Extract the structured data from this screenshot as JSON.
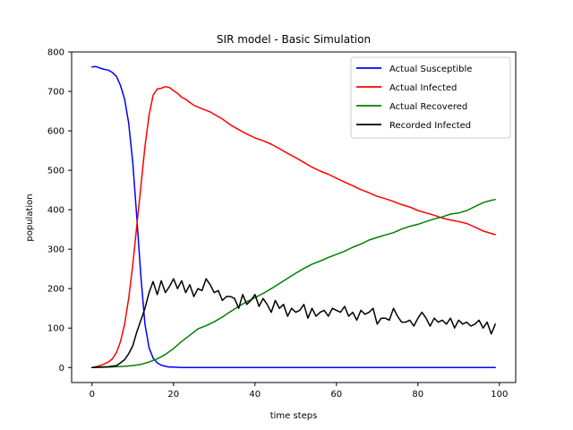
{
  "chart_data": {
    "type": "line",
    "title": "SIR model - Basic Simulation",
    "xlabel": "time steps",
    "ylabel": "population",
    "xlim": [
      -5,
      104
    ],
    "ylim": [
      -38,
      800
    ],
    "xticks": [
      0,
      20,
      40,
      60,
      80,
      100
    ],
    "yticks": [
      0,
      100,
      200,
      300,
      400,
      500,
      600,
      700,
      800
    ],
    "grid": false,
    "legend_position": "top-right",
    "series": [
      {
        "name": "Actual Susceptible",
        "color": "#0000ff",
        "x": [
          0,
          1,
          2,
          3,
          4,
          5,
          6,
          7,
          8,
          9,
          10,
          11,
          12,
          13,
          14,
          15,
          16,
          17,
          18,
          19,
          20,
          22,
          25,
          30,
          40,
          50,
          60,
          70,
          80,
          90,
          99
        ],
        "values": [
          762,
          763,
          759,
          756,
          754,
          748,
          738,
          715,
          680,
          620,
          520,
          380,
          230,
          110,
          50,
          24,
          12,
          6,
          3,
          1,
          1,
          0,
          0,
          0,
          0,
          0,
          0,
          0,
          0,
          0,
          0
        ]
      },
      {
        "name": "Actual Infected",
        "color": "#ff0000",
        "x": [
          0,
          1,
          2,
          3,
          4,
          5,
          6,
          7,
          8,
          9,
          10,
          11,
          12,
          13,
          14,
          15,
          16,
          17,
          18,
          19,
          20,
          21,
          22,
          23,
          24,
          25,
          26,
          27,
          28,
          29,
          30,
          32,
          34,
          36,
          38,
          40,
          42,
          44,
          46,
          48,
          50,
          52,
          54,
          56,
          58,
          60,
          62,
          64,
          66,
          68,
          70,
          72,
          74,
          76,
          78,
          80,
          82,
          84,
          86,
          88,
          90,
          92,
          94,
          96,
          98,
          99
        ],
        "values": [
          0,
          2,
          5,
          9,
          14,
          22,
          38,
          66,
          110,
          175,
          260,
          360,
          460,
          560,
          640,
          690,
          706,
          708,
          712,
          710,
          702,
          695,
          685,
          680,
          672,
          665,
          660,
          656,
          652,
          648,
          642,
          630,
          615,
          603,
          592,
          582,
          575,
          566,
          555,
          543,
          532,
          520,
          508,
          498,
          490,
          480,
          470,
          461,
          451,
          443,
          434,
          428,
          421,
          413,
          407,
          398,
          392,
          386,
          379,
          374,
          370,
          365,
          356,
          346,
          340,
          337
        ]
      },
      {
        "name": "Actual Recovered",
        "color": "#008000",
        "x": [
          0,
          4,
          8,
          10,
          12,
          14,
          16,
          18,
          20,
          22,
          24,
          26,
          28,
          30,
          32,
          34,
          36,
          38,
          40,
          42,
          44,
          46,
          48,
          50,
          52,
          54,
          56,
          58,
          60,
          62,
          64,
          66,
          68,
          70,
          72,
          74,
          76,
          78,
          80,
          82,
          84,
          86,
          88,
          90,
          92,
          94,
          96,
          98,
          99
        ],
        "values": [
          0,
          1,
          3,
          5,
          8,
          14,
          22,
          33,
          48,
          66,
          82,
          98,
          106,
          116,
          128,
          142,
          155,
          167,
          177,
          188,
          200,
          213,
          226,
          239,
          251,
          262,
          270,
          279,
          287,
          295,
          305,
          313,
          323,
          330,
          336,
          342,
          351,
          358,
          363,
          370,
          377,
          382,
          389,
          392,
          398,
          408,
          418,
          424,
          426
        ]
      },
      {
        "name": "Recorded Infected",
        "color": "#000000",
        "x": [
          0,
          2,
          4,
          6,
          7,
          8,
          9,
          10,
          11,
          12,
          13,
          14,
          15,
          16,
          17,
          18,
          19,
          20,
          21,
          22,
          23,
          24,
          25,
          26,
          27,
          28,
          29,
          30,
          31,
          32,
          33,
          34,
          35,
          36,
          37,
          38,
          39,
          40,
          41,
          42,
          43,
          44,
          45,
          46,
          47,
          48,
          49,
          50,
          51,
          52,
          53,
          54,
          55,
          56,
          57,
          58,
          59,
          60,
          61,
          62,
          63,
          64,
          65,
          66,
          67,
          68,
          69,
          70,
          71,
          72,
          73,
          74,
          75,
          76,
          77,
          78,
          79,
          80,
          81,
          82,
          83,
          84,
          85,
          86,
          87,
          88,
          89,
          90,
          91,
          92,
          93,
          94,
          95,
          96,
          97,
          98,
          99
        ],
        "values": [
          0,
          1,
          2,
          5,
          12,
          20,
          35,
          55,
          90,
          120,
          150,
          190,
          218,
          185,
          220,
          190,
          205,
          225,
          200,
          220,
          190,
          210,
          180,
          200,
          195,
          225,
          210,
          190,
          195,
          170,
          180,
          180,
          175,
          150,
          185,
          160,
          170,
          185,
          155,
          175,
          160,
          140,
          170,
          150,
          160,
          130,
          150,
          140,
          145,
          160,
          125,
          150,
          130,
          140,
          145,
          130,
          150,
          145,
          140,
          155,
          130,
          140,
          120,
          145,
          135,
          140,
          150,
          110,
          125,
          125,
          120,
          150,
          130,
          115,
          115,
          120,
          105,
          125,
          140,
          125,
          105,
          125,
          115,
          120,
          110,
          125,
          100,
          120,
          110,
          115,
          105,
          110,
          120,
          100,
          115,
          85,
          110
        ]
      }
    ]
  }
}
